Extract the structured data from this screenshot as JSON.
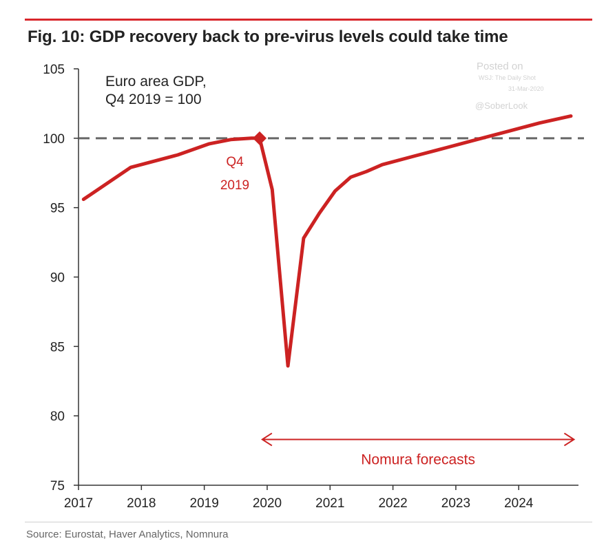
{
  "header": {
    "title": "Fig. 10: GDP recovery back to pre-virus levels could take time",
    "rule_color": "#d9262c"
  },
  "watermark": {
    "line1": "Posted on",
    "line2": "WSJ: The Daily Shot",
    "line3": "31-Mar-2020",
    "line4": "@SoberLook"
  },
  "footer": {
    "source": "Source: Eurostat, Haver Analytics, Nomnura"
  },
  "chart_data": {
    "type": "line",
    "title": "Fig. 10: GDP recovery back to pre-virus levels could take time",
    "xlabel": "",
    "ylabel": "",
    "xlim": [
      2017.0,
      2024.95
    ],
    "ylim": [
      75,
      105
    ],
    "x_ticks": [
      2017,
      2018,
      2019,
      2020,
      2021,
      2022,
      2023,
      2024
    ],
    "x_tick_labels": [
      "2017",
      "2018",
      "2019",
      "2020",
      "2021",
      "2022",
      "2023",
      "2024"
    ],
    "y_ticks": [
      75,
      80,
      85,
      90,
      95,
      100,
      105
    ],
    "y_tick_labels": [
      "75",
      "80",
      "85",
      "90",
      "95",
      "100",
      "105"
    ],
    "grid": false,
    "series": [
      {
        "name": "",
        "color": "#cc2222",
        "x": [
          2017.08,
          2017.83,
          2018.33,
          2018.58,
          2019.08,
          2019.42,
          2019.75,
          2019.88,
          2020.08,
          2020.33,
          2020.58,
          2020.83,
          2021.08,
          2021.33,
          2021.58,
          2021.83,
          2022.33,
          2022.83,
          2023.33,
          2023.83,
          2024.33,
          2024.83
        ],
        "y": [
          95.6,
          97.9,
          98.5,
          98.8,
          99.6,
          99.9,
          100.0,
          100.0,
          96.3,
          83.6,
          92.8,
          94.6,
          96.2,
          97.2,
          97.6,
          98.1,
          98.7,
          99.3,
          99.9,
          100.5,
          101.1,
          101.6
        ]
      }
    ],
    "reference_line": {
      "y": 100,
      "style": "dashed",
      "color": "#666666"
    },
    "highlight": {
      "x": 2019.88,
      "y": 100.0,
      "label_line1": "Q4",
      "label_line2": "2019"
    },
    "annotations": [
      {
        "text_line1": "Euro area GDP,",
        "text_line2": "Q4 2019 = 100"
      },
      {
        "text": "Nomura forecasts",
        "x_from": 2019.9,
        "x_to": 2024.9,
        "y": 78.3,
        "color": "#cc2222"
      }
    ]
  }
}
